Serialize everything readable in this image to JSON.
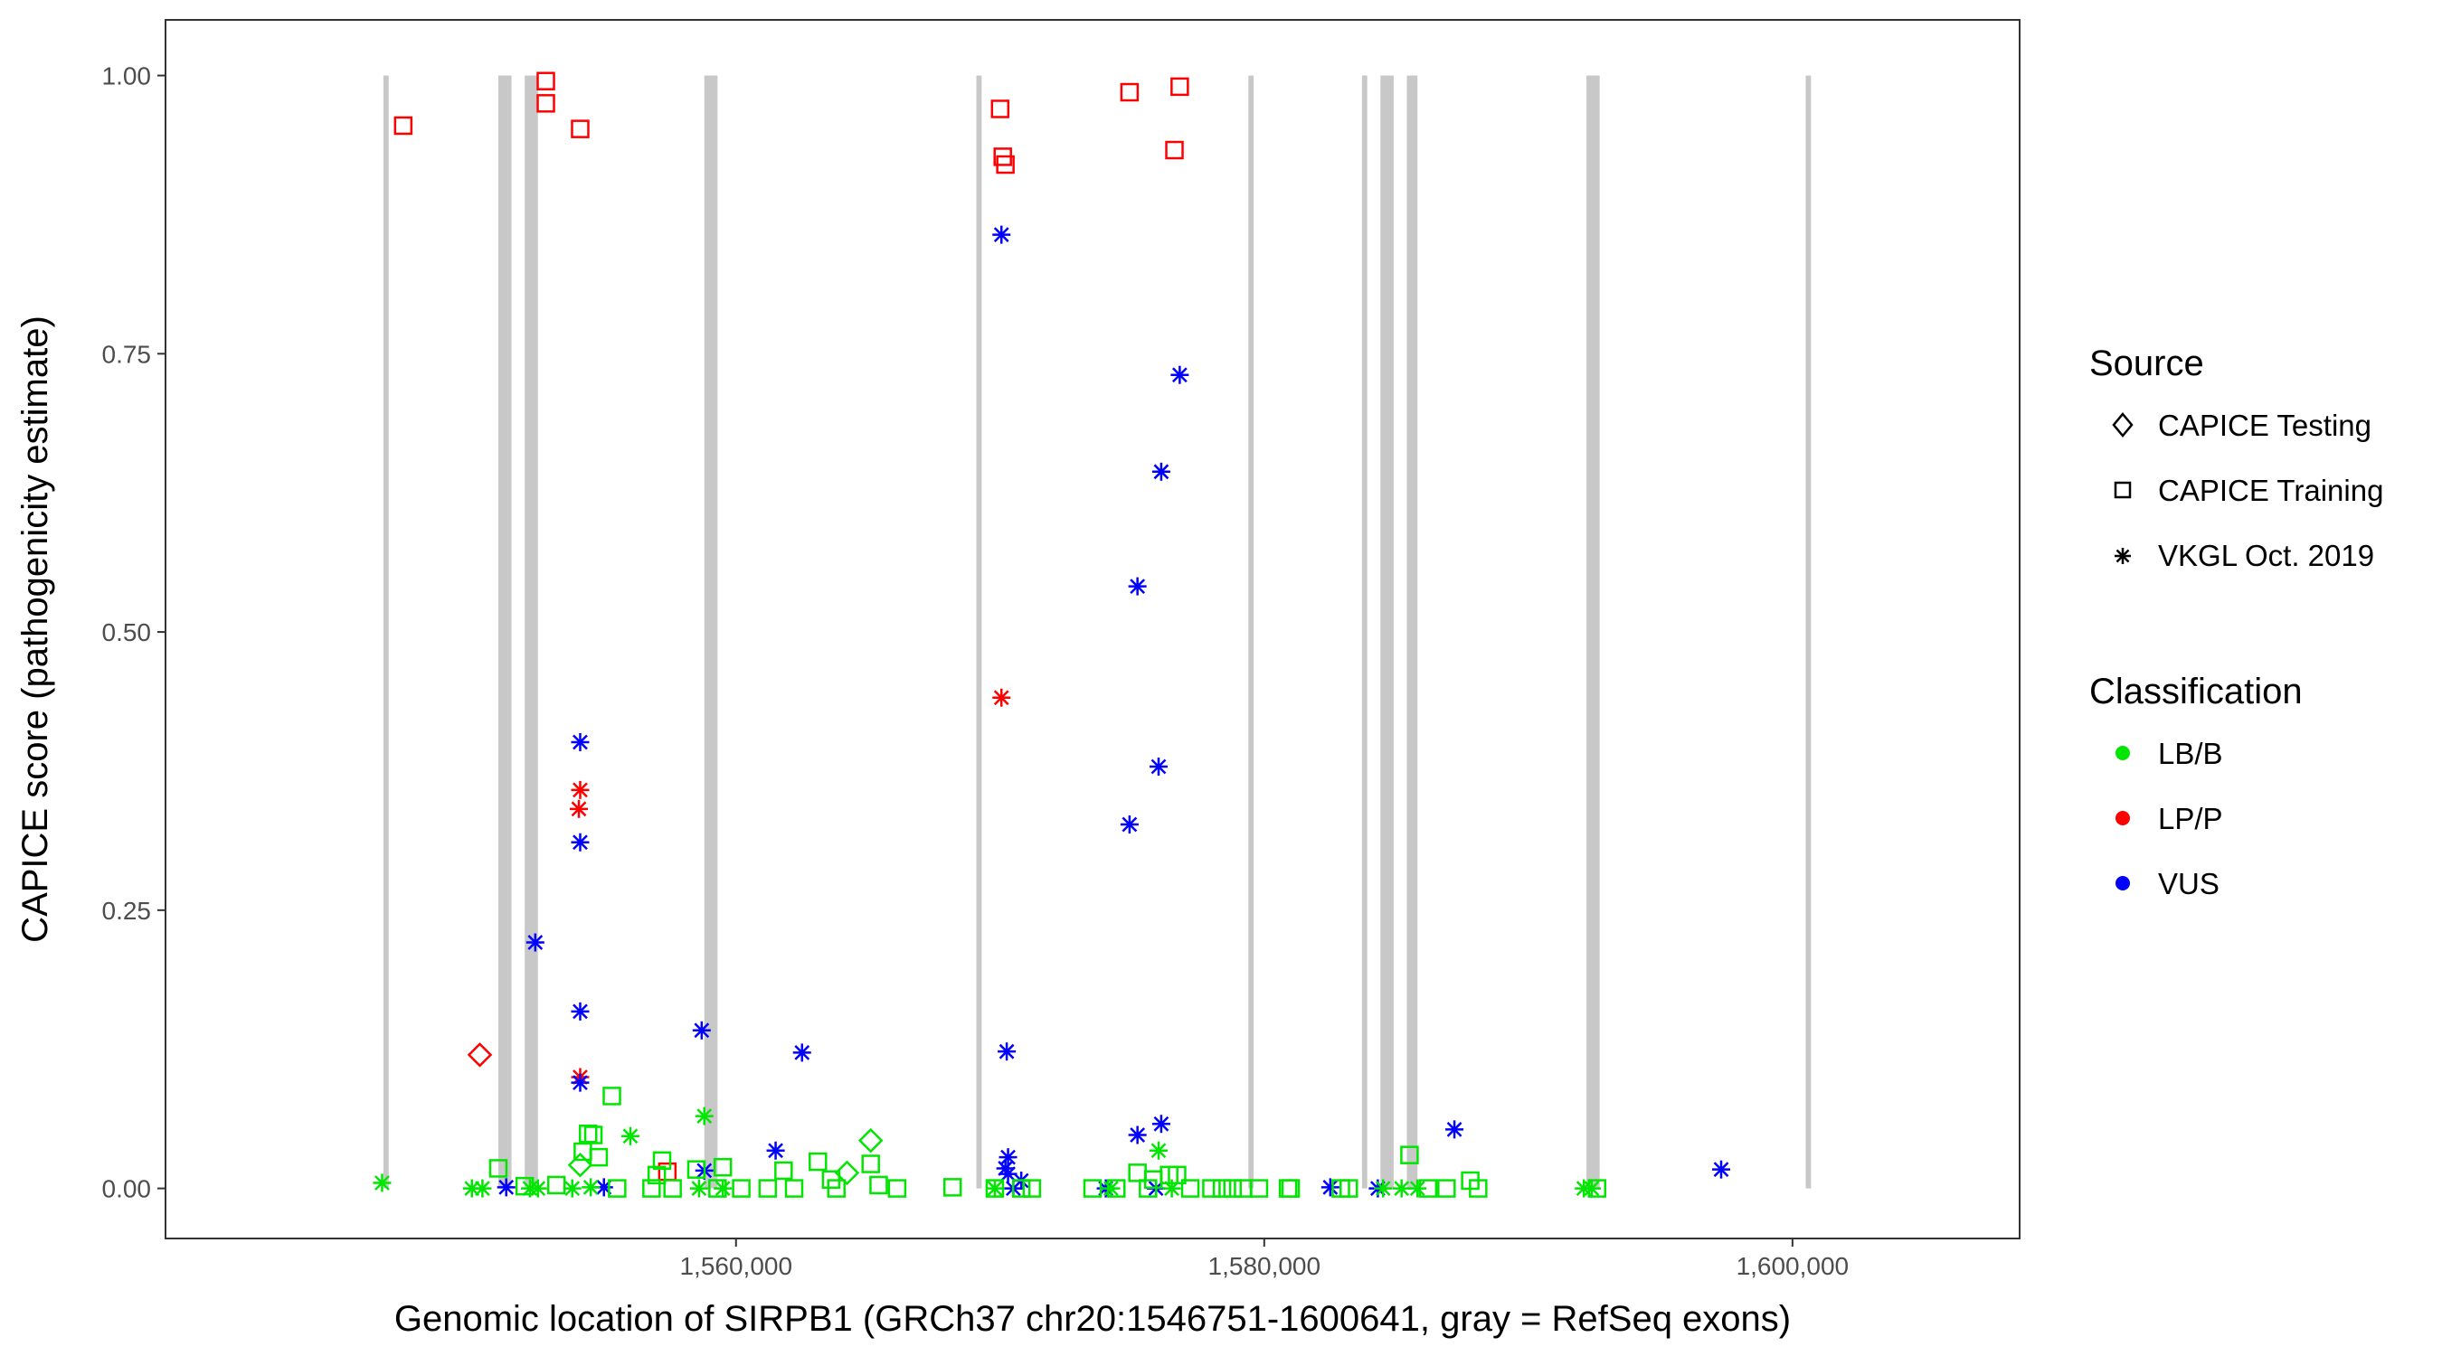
{
  "chart_data": {
    "type": "scatter",
    "xlabel": "Genomic location of SIRPB1 (GRCh37 chr20:1546751-1600641, gray = RefSeq exons)",
    "ylabel": "CAPICE score (pathogenicity estimate)",
    "xlim": [
      1538400,
      1608600
    ],
    "ylim": [
      -0.045,
      1.05
    ],
    "x_ticks": [
      1560000,
      1580000,
      1600000
    ],
    "x_tick_labels": [
      "1,560,000",
      "1,580,000",
      "1,600,000"
    ],
    "y_ticks": [
      0,
      0.25,
      0.5,
      0.75,
      1.0
    ],
    "y_tick_labels": [
      "0.00",
      "0.25",
      "0.50",
      "0.75",
      "1.00"
    ],
    "grid": false,
    "exons": [
      [
        1546650,
        1546850
      ],
      [
        1551000,
        1551500
      ],
      [
        1552000,
        1552500
      ],
      [
        1558800,
        1559300
      ],
      [
        1569100,
        1569300
      ],
      [
        1579400,
        1579600
      ],
      [
        1583700,
        1583900
      ],
      [
        1584400,
        1584900
      ],
      [
        1585400,
        1585800
      ],
      [
        1592200,
        1592700
      ],
      [
        1600500,
        1600700
      ]
    ],
    "legend": {
      "position": "right",
      "source_title": "Source",
      "source_items": [
        {
          "label": "CAPICE Testing",
          "shape": "diamond"
        },
        {
          "label": "CAPICE Training",
          "shape": "square"
        },
        {
          "label": "VKGL Oct. 2019",
          "shape": "asterisk"
        }
      ],
      "class_title": "Classification",
      "class_items": [
        {
          "label": "LB/B",
          "color": "#00e600"
        },
        {
          "label": "LP/P",
          "color": "#ff0000"
        },
        {
          "label": "VUS",
          "color": "#0000ff"
        }
      ]
    },
    "colors": {
      "LB/B": "#00e600",
      "LP/P": "#ff0000",
      "VUS": "#0000ff"
    },
    "series": [
      {
        "source": "CAPICE Training",
        "classification": "LP/P",
        "x": [
          1547400,
          1552800,
          1552800,
          1554100,
          1570000,
          1570100,
          1570200,
          1574900,
          1576600,
          1576800,
          1557400
        ],
        "y": [
          0.955,
          0.995,
          0.975,
          0.952,
          0.97,
          0.927,
          0.92,
          0.985,
          0.933,
          0.99,
          0.015
        ]
      },
      {
        "source": "CAPICE Testing",
        "classification": "LP/P",
        "x": [
          1550300
        ],
        "y": [
          0.12
        ]
      },
      {
        "source": "VKGL Oct. 2019",
        "classification": "LP/P",
        "x": [
          1554100,
          1554050,
          1554100,
          1570050
        ],
        "y": [
          0.358,
          0.341,
          0.1,
          0.441
        ]
      },
      {
        "source": "VKGL Oct. 2019",
        "classification": "VUS",
        "x": [
          1552400,
          1554100,
          1554100,
          1554100,
          1554100,
          1558700,
          1561500,
          1562500,
          1570050,
          1570250,
          1574900,
          1575200,
          1576100,
          1576000,
          1576800,
          1576100,
          1575200,
          1575900,
          1570300,
          1570200,
          1570300,
          1570800,
          1570500,
          1574000,
          1582500,
          1584300,
          1587200,
          1597300,
          1551300,
          1555000,
          1558800
        ],
        "y": [
          0.221,
          0.401,
          0.311,
          0.159,
          0.095,
          0.142,
          0.034,
          0.122,
          0.857,
          0.123,
          0.327,
          0.541,
          0.644,
          0.379,
          0.731,
          0.058,
          0.048,
          0.0,
          0.028,
          0.018,
          0.013,
          0.007,
          0.0,
          0.0,
          0.001,
          0.0,
          0.053,
          0.017,
          0.001,
          0.001,
          0.016
        ]
      },
      {
        "source": "VKGL Oct. 2019",
        "classification": "LB/B",
        "x": [
          1546600,
          1550000,
          1550400,
          1552200,
          1552500,
          1553800,
          1554500,
          1556000,
          1558800,
          1558600,
          1559500,
          1569800,
          1576000,
          1574200,
          1576500,
          1584500,
          1585200,
          1585800,
          1592100,
          1592400
        ],
        "y": [
          0.005,
          0.0,
          0.0,
          0.0,
          0.0,
          0.0,
          0.001,
          0.047,
          0.065,
          0.0,
          0.0,
          0.0,
          0.034,
          0.0,
          0.0,
          0.0,
          0.0,
          0.0,
          0.0,
          0.0
        ]
      },
      {
        "source": "CAPICE Training",
        "classification": "LB/B",
        "x": [
          1551000,
          1554600,
          1554400,
          1554200,
          1554800,
          1555300,
          1555500,
          1557000,
          1556800,
          1557200,
          1558500,
          1559500,
          1559300,
          1561800,
          1562200,
          1563100,
          1563600,
          1565100,
          1565400,
          1568200,
          1569800,
          1573500,
          1575200,
          1575800,
          1576400,
          1576700,
          1578000,
          1578400,
          1578800,
          1579800,
          1580900,
          1582900,
          1585500,
          1586900,
          1587800,
          1588100,
          1592600,
          1552000,
          1553200,
          1557600,
          1560200,
          1561200,
          1563800,
          1566100,
          1570800,
          1571200,
          1574400,
          1575600,
          1577200,
          1579200,
          1581000,
          1583200,
          1586200
        ],
        "y": [
          0.018,
          0.048,
          0.049,
          0.033,
          0.028,
          0.083,
          0.0,
          0.012,
          0.0,
          0.025,
          0.017,
          0.019,
          0.0,
          0.016,
          0.0,
          0.024,
          0.008,
          0.022,
          0.003,
          0.001,
          0.0,
          0.0,
          0.014,
          0.008,
          0.012,
          0.012,
          0.0,
          0.0,
          0.0,
          0.0,
          0.0,
          0.0,
          0.03,
          0.0,
          0.007,
          0.0,
          0.0,
          0.002,
          0.003,
          0.0,
          0.0,
          0.0,
          0.0,
          0.0,
          0.0,
          0.0,
          0.0,
          0.0,
          0.0,
          0.0,
          0.0,
          0.0,
          0.0
        ]
      },
      {
        "source": "CAPICE Testing",
        "classification": "LB/B",
        "x": [
          1554100,
          1564200,
          1565100
        ],
        "y": [
          0.021,
          0.014,
          0.043
        ]
      }
    ]
  }
}
